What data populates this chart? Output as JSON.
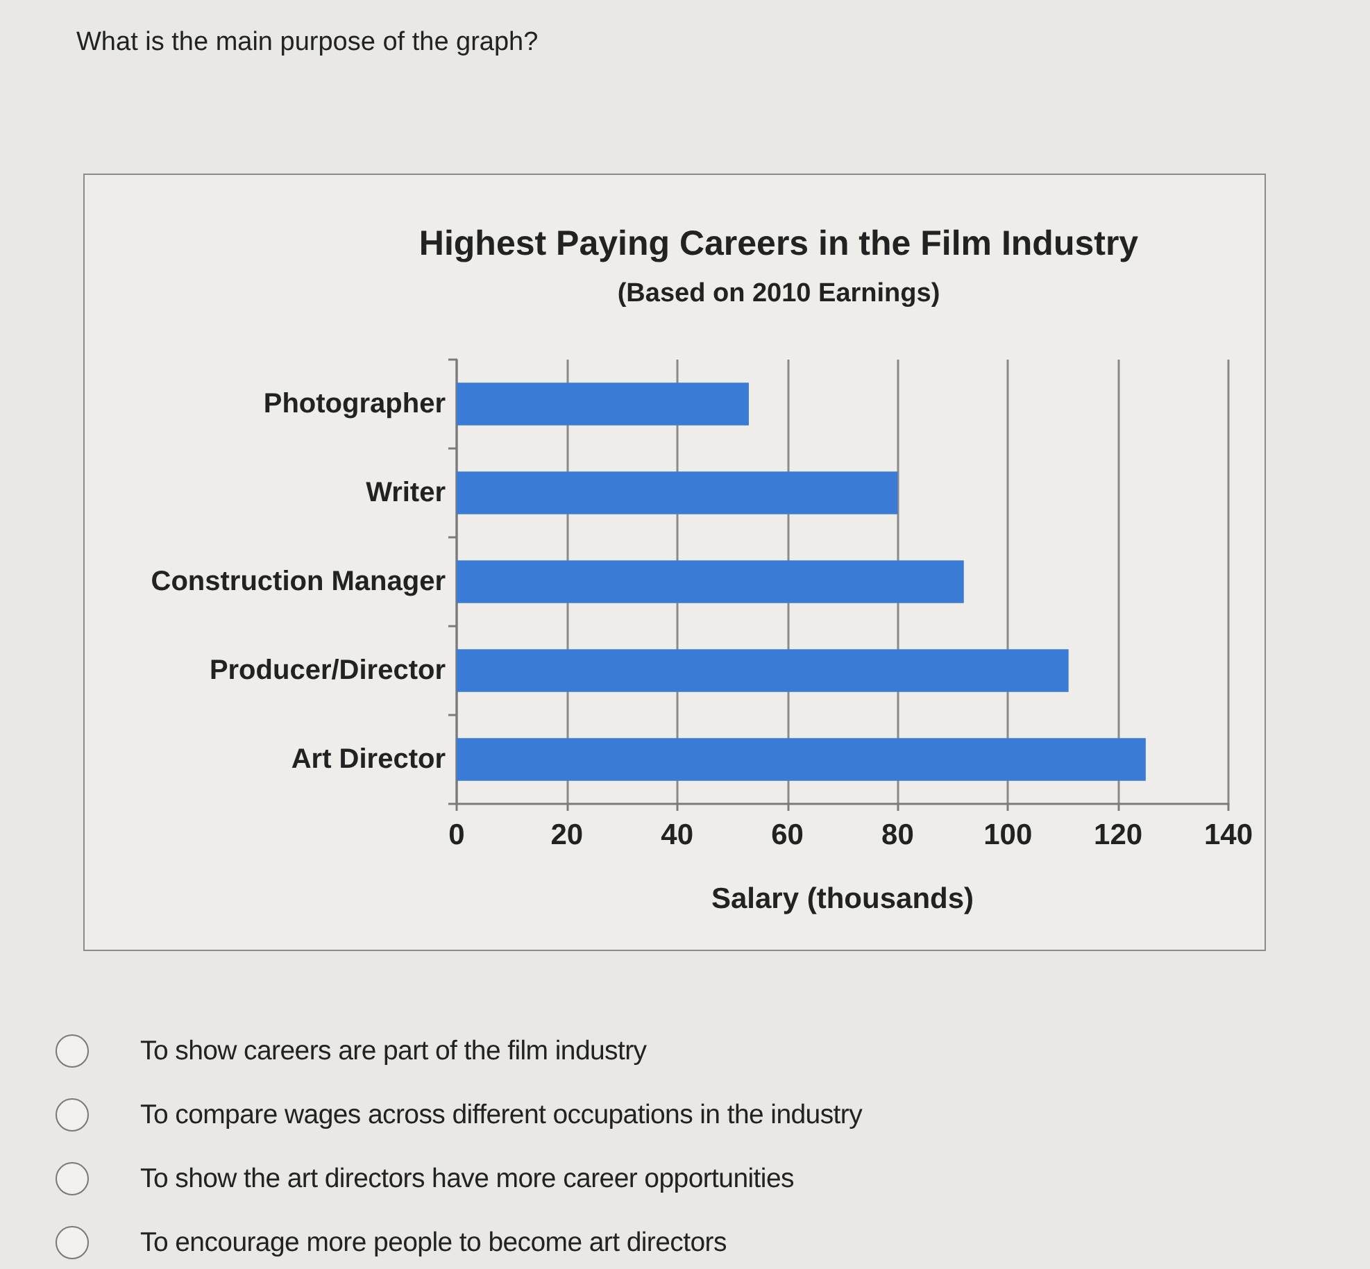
{
  "chart_data": {
    "type": "bar",
    "orientation": "horizontal",
    "title": "Highest Paying Careers in the Film Industry",
    "subtitle": "(Based on 2010 Earnings)",
    "xlabel": "Salary (thousands)",
    "categories": [
      "Photographer",
      "Writer",
      "Construction Manager",
      "Producer/Director",
      "Art Director"
    ],
    "values": [
      53,
      80,
      92,
      111,
      125
    ],
    "color": "#3a7bd5",
    "xlim": [
      0,
      140
    ],
    "xticks": [
      0,
      20,
      40,
      60,
      80,
      100,
      120,
      140
    ],
    "grid": "x",
    "annotations": [
      "What is the main purpose of the graph?",
      "To show careers are part of the film industry",
      "To compare wages across different occupations in the industry",
      "To show the art directors have more career opportunities",
      "To encourage more people to become art directors"
    ]
  }
}
